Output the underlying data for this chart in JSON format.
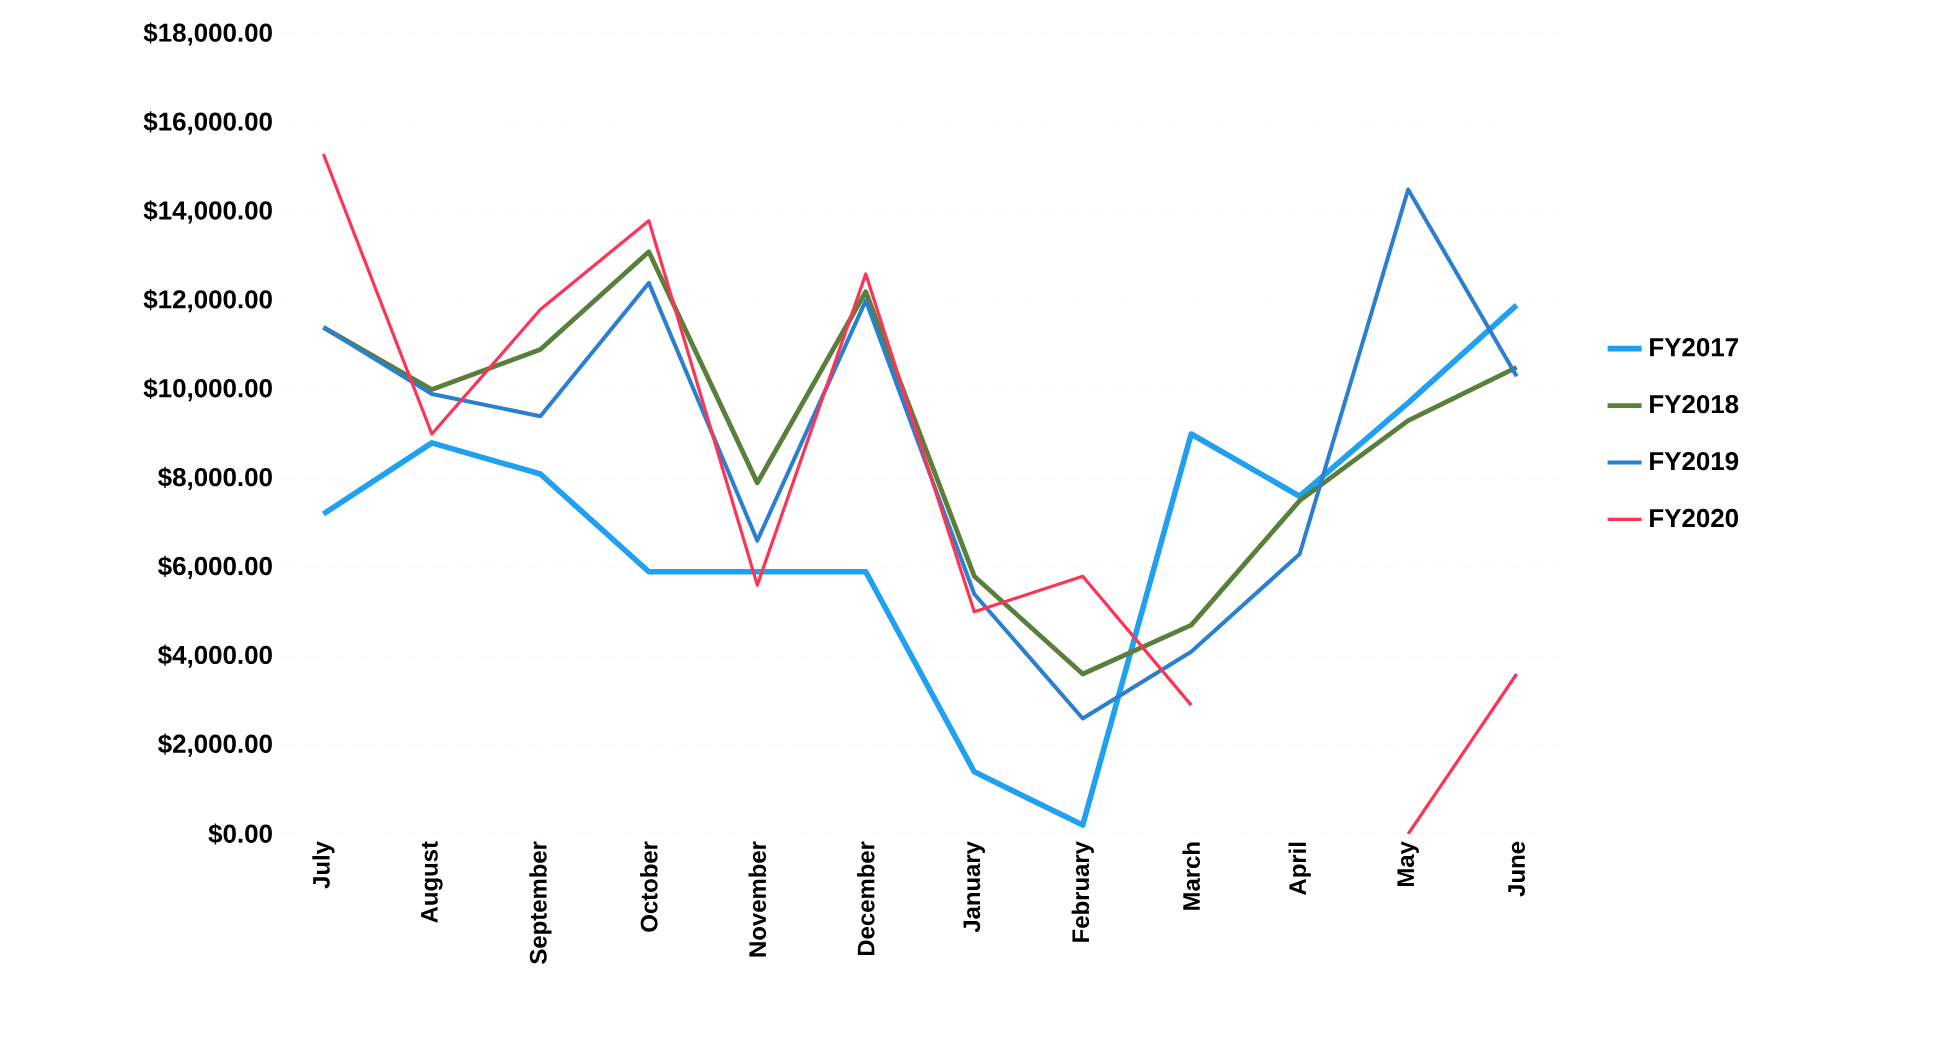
{
  "chart_data": {
    "type": "line",
    "categories": [
      "July",
      "August",
      "September",
      "October",
      "November",
      "December",
      "January",
      "February",
      "March",
      "April",
      "May",
      "June"
    ],
    "series": [
      {
        "name": "FY2017",
        "color": "#1fa0f0",
        "values": [
          7200,
          8800,
          8100,
          5900,
          5900,
          5900,
          1400,
          200,
          9000,
          7600,
          9700,
          11900
        ]
      },
      {
        "name": "FY2018",
        "color": "#5a7f3a",
        "values": [
          11400,
          10000,
          10900,
          13100,
          7900,
          12200,
          5800,
          3600,
          4700,
          7500,
          9300,
          10500
        ]
      },
      {
        "name": "FY2019",
        "color": "#2a7fd0",
        "values": [
          11400,
          9900,
          9400,
          12400,
          6600,
          12000,
          5400,
          2600,
          4100,
          6300,
          14500,
          10300
        ]
      },
      {
        "name": "FY2020",
        "color": "#ff3355",
        "values": [
          15300,
          9000,
          11800,
          13800,
          5600,
          12600,
          5000,
          5800,
          2900,
          null,
          0,
          3600
        ]
      }
    ],
    "ylim": [
      0,
      18000
    ],
    "yticks": [
      {
        "value": 0,
        "label": "$0.00"
      },
      {
        "value": 2000,
        "label": "$2,000.00"
      },
      {
        "value": 4000,
        "label": "$4,000.00"
      },
      {
        "value": 6000,
        "label": "$6,000.00"
      },
      {
        "value": 8000,
        "label": "$8,000.00"
      },
      {
        "value": 10000,
        "label": "$10,000.00"
      },
      {
        "value": 12000,
        "label": "$12,000.00"
      },
      {
        "value": 14000,
        "label": "$14,000.00"
      },
      {
        "value": 16000,
        "label": "$16,000.00"
      },
      {
        "value": 18000,
        "label": "$18,000.00"
      }
    ],
    "grid": "y",
    "legend": "right",
    "marker": "none",
    "line_style": "solid"
  }
}
